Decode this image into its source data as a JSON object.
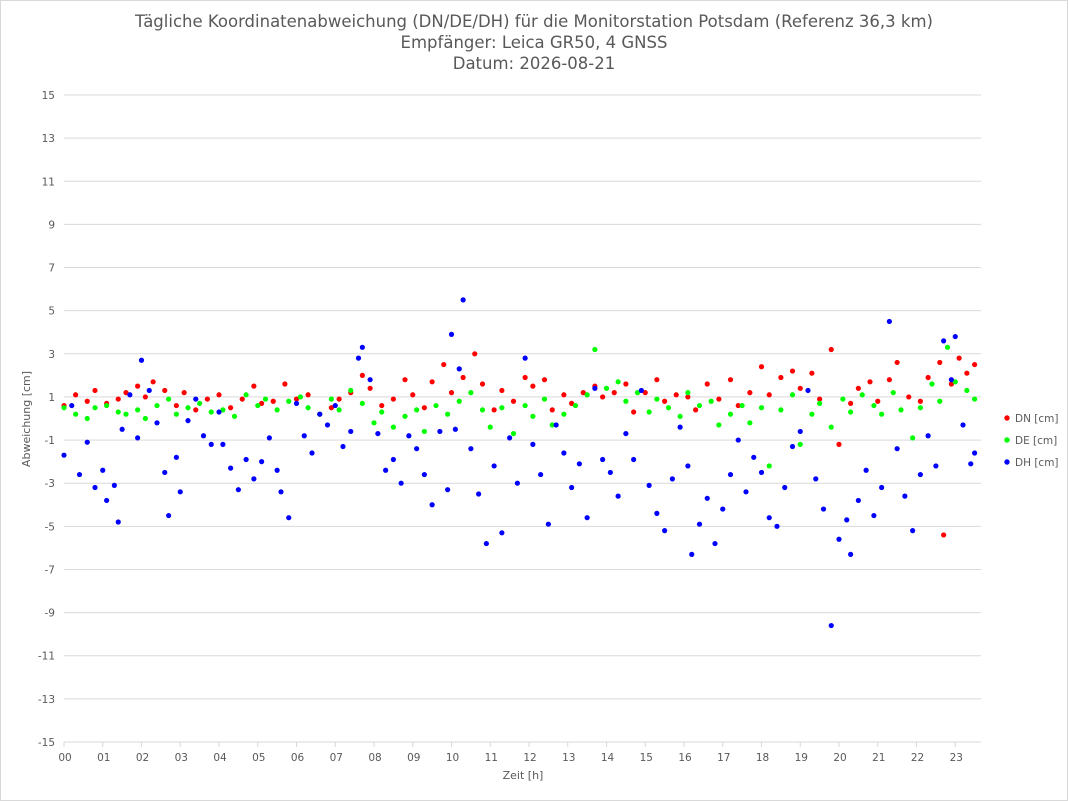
{
  "chart_data": {
    "type": "scatter",
    "title": "Tägliche Koordinatenabweichung (DN/DE/DH) für die Monitorstation Potsdam (Referenz 36,3 km)",
    "subtitle": "Empfänger: Leica GR50, 4 GNSS",
    "date_line": "Datum: 2026-08-21",
    "xlabel": "Zeit [h]",
    "ylabel": "Abweichung [cm]",
    "ylim": [
      -15,
      15
    ],
    "xlim": [
      0,
      24
    ],
    "grid": "horizontal",
    "legend_position": "right",
    "x_tick_labels": [
      "00",
      "01",
      "02",
      "03",
      "04",
      "05",
      "06",
      "07",
      "08",
      "09",
      "10",
      "11",
      "12",
      "13",
      "14",
      "15",
      "16",
      "17",
      "18",
      "19",
      "20",
      "21",
      "22",
      "23"
    ],
    "y_tick_labels": [
      "15",
      "13",
      "11",
      "9",
      "7",
      "5",
      "3",
      "1",
      "-1",
      "-3",
      "-5",
      "-7",
      "-9",
      "-11",
      "-13",
      "-15"
    ],
    "y_ticks": [
      15,
      13,
      11,
      9,
      7,
      5,
      3,
      1,
      -1,
      -3,
      -5,
      -7,
      -9,
      -11,
      -13,
      -15
    ],
    "series": [
      {
        "name": "DN [cm]",
        "color": "#ff0000",
        "values": [
          [
            0.0,
            0.6
          ],
          [
            0.3,
            1.1
          ],
          [
            0.6,
            0.8
          ],
          [
            0.8,
            1.3
          ],
          [
            1.1,
            0.7
          ],
          [
            1.4,
            0.9
          ],
          [
            1.6,
            1.2
          ],
          [
            1.9,
            1.5
          ],
          [
            2.1,
            1.0
          ],
          [
            2.3,
            1.7
          ],
          [
            2.6,
            1.3
          ],
          [
            2.9,
            0.6
          ],
          [
            3.1,
            1.2
          ],
          [
            3.4,
            0.4
          ],
          [
            3.7,
            0.9
          ],
          [
            4.0,
            1.1
          ],
          [
            4.3,
            0.5
          ],
          [
            4.6,
            0.9
          ],
          [
            4.9,
            1.5
          ],
          [
            5.1,
            0.7
          ],
          [
            5.4,
            0.8
          ],
          [
            5.7,
            1.6
          ],
          [
            6.0,
            0.9
          ],
          [
            6.3,
            1.1
          ],
          [
            6.6,
            0.2
          ],
          [
            6.9,
            0.5
          ],
          [
            7.1,
            0.9
          ],
          [
            7.4,
            1.2
          ],
          [
            7.7,
            2.0
          ],
          [
            7.9,
            1.4
          ],
          [
            8.2,
            0.6
          ],
          [
            8.5,
            0.9
          ],
          [
            8.8,
            1.8
          ],
          [
            9.0,
            1.1
          ],
          [
            9.3,
            0.5
          ],
          [
            9.5,
            1.7
          ],
          [
            9.8,
            2.5
          ],
          [
            10.0,
            1.2
          ],
          [
            10.3,
            1.9
          ],
          [
            10.6,
            3.0
          ],
          [
            10.8,
            1.6
          ],
          [
            11.1,
            0.4
          ],
          [
            11.3,
            1.3
          ],
          [
            11.6,
            0.8
          ],
          [
            11.9,
            1.9
          ],
          [
            12.1,
            1.5
          ],
          [
            12.4,
            1.8
          ],
          [
            12.6,
            0.4
          ],
          [
            12.9,
            1.1
          ],
          [
            13.1,
            0.7
          ],
          [
            13.4,
            1.2
          ],
          [
            13.7,
            1.5
          ],
          [
            13.9,
            1.0
          ],
          [
            14.2,
            1.2
          ],
          [
            14.5,
            1.6
          ],
          [
            14.7,
            0.3
          ],
          [
            15.0,
            1.2
          ],
          [
            15.3,
            1.8
          ],
          [
            15.5,
            0.8
          ],
          [
            15.8,
            1.1
          ],
          [
            16.1,
            1.0
          ],
          [
            16.3,
            0.4
          ],
          [
            16.6,
            1.6
          ],
          [
            16.9,
            0.9
          ],
          [
            17.2,
            1.8
          ],
          [
            17.4,
            0.6
          ],
          [
            17.7,
            1.2
          ],
          [
            18.0,
            2.4
          ],
          [
            18.2,
            1.1
          ],
          [
            18.5,
            1.9
          ],
          [
            18.8,
            2.2
          ],
          [
            19.0,
            1.4
          ],
          [
            19.3,
            2.1
          ],
          [
            19.5,
            0.9
          ],
          [
            19.8,
            3.2
          ],
          [
            20.0,
            -1.2
          ],
          [
            20.3,
            0.7
          ],
          [
            20.5,
            1.4
          ],
          [
            20.8,
            1.7
          ],
          [
            21.0,
            0.8
          ],
          [
            21.3,
            1.8
          ],
          [
            21.5,
            2.6
          ],
          [
            21.8,
            1.0
          ],
          [
            22.1,
            0.8
          ],
          [
            22.3,
            1.9
          ],
          [
            22.6,
            2.6
          ],
          [
            22.7,
            -5.4
          ],
          [
            22.9,
            1.6
          ],
          [
            23.1,
            2.8
          ],
          [
            23.3,
            2.1
          ],
          [
            23.5,
            2.5
          ]
        ]
      },
      {
        "name": "DE [cm]",
        "color": "#00ff00",
        "values": [
          [
            0.0,
            0.5
          ],
          [
            0.3,
            0.2
          ],
          [
            0.6,
            0.0
          ],
          [
            0.8,
            0.5
          ],
          [
            1.1,
            0.6
          ],
          [
            1.4,
            0.3
          ],
          [
            1.6,
            0.2
          ],
          [
            1.9,
            0.4
          ],
          [
            2.1,
            0.0
          ],
          [
            2.4,
            0.6
          ],
          [
            2.7,
            0.9
          ],
          [
            2.9,
            0.2
          ],
          [
            3.2,
            0.5
          ],
          [
            3.5,
            0.7
          ],
          [
            3.8,
            0.3
          ],
          [
            4.1,
            0.4
          ],
          [
            4.4,
            0.1
          ],
          [
            4.7,
            1.1
          ],
          [
            5.0,
            0.6
          ],
          [
            5.2,
            0.9
          ],
          [
            5.5,
            0.4
          ],
          [
            5.8,
            0.8
          ],
          [
            6.1,
            1.0
          ],
          [
            6.3,
            0.5
          ],
          [
            6.6,
            0.2
          ],
          [
            6.9,
            0.9
          ],
          [
            7.1,
            0.4
          ],
          [
            7.4,
            1.3
          ],
          [
            7.7,
            0.7
          ],
          [
            8.0,
            -0.2
          ],
          [
            8.2,
            0.3
          ],
          [
            8.5,
            -0.4
          ],
          [
            8.8,
            0.1
          ],
          [
            9.1,
            0.4
          ],
          [
            9.3,
            -0.6
          ],
          [
            9.6,
            0.6
          ],
          [
            9.9,
            0.2
          ],
          [
            10.2,
            0.8
          ],
          [
            10.5,
            1.2
          ],
          [
            10.8,
            0.4
          ],
          [
            11.0,
            -0.4
          ],
          [
            11.3,
            0.5
          ],
          [
            11.6,
            -0.7
          ],
          [
            11.9,
            0.6
          ],
          [
            12.1,
            0.1
          ],
          [
            12.4,
            0.9
          ],
          [
            12.6,
            -0.3
          ],
          [
            12.9,
            0.2
          ],
          [
            13.2,
            0.6
          ],
          [
            13.5,
            1.1
          ],
          [
            13.7,
            3.2
          ],
          [
            14.0,
            1.4
          ],
          [
            14.3,
            1.7
          ],
          [
            14.5,
            0.8
          ],
          [
            14.8,
            1.2
          ],
          [
            15.1,
            0.3
          ],
          [
            15.3,
            0.9
          ],
          [
            15.6,
            0.5
          ],
          [
            15.9,
            0.1
          ],
          [
            16.1,
            1.2
          ],
          [
            16.4,
            0.6
          ],
          [
            16.7,
            0.8
          ],
          [
            16.9,
            -0.3
          ],
          [
            17.2,
            0.2
          ],
          [
            17.5,
            0.6
          ],
          [
            17.7,
            -0.2
          ],
          [
            18.0,
            0.5
          ],
          [
            18.2,
            -2.2
          ],
          [
            18.5,
            0.4
          ],
          [
            18.8,
            1.1
          ],
          [
            19.0,
            -1.2
          ],
          [
            19.3,
            0.2
          ],
          [
            19.5,
            0.7
          ],
          [
            19.8,
            -0.4
          ],
          [
            20.1,
            0.9
          ],
          [
            20.3,
            0.3
          ],
          [
            20.6,
            1.1
          ],
          [
            20.9,
            0.6
          ],
          [
            21.1,
            0.2
          ],
          [
            21.4,
            1.2
          ],
          [
            21.6,
            0.4
          ],
          [
            21.9,
            -0.9
          ],
          [
            22.1,
            0.5
          ],
          [
            22.4,
            1.6
          ],
          [
            22.6,
            0.8
          ],
          [
            22.8,
            3.3
          ],
          [
            23.0,
            1.7
          ],
          [
            23.3,
            1.3
          ],
          [
            23.5,
            0.9
          ]
        ]
      },
      {
        "name": "DH [cm]",
        "color": "#0000ff",
        "values": [
          [
            0.0,
            -1.7
          ],
          [
            0.2,
            0.6
          ],
          [
            0.4,
            -2.6
          ],
          [
            0.6,
            -1.1
          ],
          [
            0.8,
            -3.2
          ],
          [
            1.0,
            -2.4
          ],
          [
            1.1,
            -3.8
          ],
          [
            1.3,
            -3.1
          ],
          [
            1.4,
            -4.8
          ],
          [
            1.5,
            -0.5
          ],
          [
            1.7,
            1.1
          ],
          [
            1.9,
            -0.9
          ],
          [
            2.0,
            2.7
          ],
          [
            2.2,
            1.3
          ],
          [
            2.4,
            -0.2
          ],
          [
            2.6,
            -2.5
          ],
          [
            2.7,
            -4.5
          ],
          [
            2.9,
            -1.8
          ],
          [
            3.0,
            -3.4
          ],
          [
            3.2,
            -0.1
          ],
          [
            3.4,
            0.9
          ],
          [
            3.6,
            -0.8
          ],
          [
            3.8,
            -1.2
          ],
          [
            4.0,
            0.3
          ],
          [
            4.1,
            -1.2
          ],
          [
            4.3,
            -2.3
          ],
          [
            4.5,
            -3.3
          ],
          [
            4.7,
            -1.9
          ],
          [
            4.9,
            -2.8
          ],
          [
            5.1,
            -2.0
          ],
          [
            5.3,
            -0.9
          ],
          [
            5.5,
            -2.4
          ],
          [
            5.6,
            -3.4
          ],
          [
            5.8,
            -4.6
          ],
          [
            6.0,
            0.7
          ],
          [
            6.2,
            -0.8
          ],
          [
            6.4,
            -1.6
          ],
          [
            6.6,
            0.2
          ],
          [
            6.8,
            -0.3
          ],
          [
            7.0,
            0.6
          ],
          [
            7.2,
            -1.3
          ],
          [
            7.4,
            -0.6
          ],
          [
            7.6,
            2.8
          ],
          [
            7.7,
            3.3
          ],
          [
            7.9,
            1.8
          ],
          [
            8.1,
            -0.7
          ],
          [
            8.3,
            -2.4
          ],
          [
            8.5,
            -1.9
          ],
          [
            8.7,
            -3.0
          ],
          [
            8.9,
            -0.8
          ],
          [
            9.1,
            -1.4
          ],
          [
            9.3,
            -2.6
          ],
          [
            9.5,
            -4.0
          ],
          [
            9.7,
            -0.6
          ],
          [
            9.9,
            -3.3
          ],
          [
            10.0,
            3.9
          ],
          [
            10.1,
            -0.5
          ],
          [
            10.2,
            2.3
          ],
          [
            10.3,
            5.5
          ],
          [
            10.5,
            -1.4
          ],
          [
            10.7,
            -3.5
          ],
          [
            10.9,
            -5.8
          ],
          [
            11.1,
            -2.2
          ],
          [
            11.3,
            -5.3
          ],
          [
            11.5,
            -0.9
          ],
          [
            11.7,
            -3.0
          ],
          [
            11.9,
            2.8
          ],
          [
            12.1,
            -1.2
          ],
          [
            12.3,
            -2.6
          ],
          [
            12.5,
            -4.9
          ],
          [
            12.7,
            -0.3
          ],
          [
            12.9,
            -1.6
          ],
          [
            13.1,
            -3.2
          ],
          [
            13.3,
            -2.1
          ],
          [
            13.5,
            -4.6
          ],
          [
            13.7,
            1.4
          ],
          [
            13.9,
            -1.9
          ],
          [
            14.1,
            -2.5
          ],
          [
            14.3,
            -3.6
          ],
          [
            14.5,
            -0.7
          ],
          [
            14.7,
            -1.9
          ],
          [
            14.9,
            1.3
          ],
          [
            15.1,
            -3.1
          ],
          [
            15.3,
            -4.4
          ],
          [
            15.5,
            -5.2
          ],
          [
            15.7,
            -2.8
          ],
          [
            15.9,
            -0.4
          ],
          [
            16.1,
            -2.2
          ],
          [
            16.2,
            -6.3
          ],
          [
            16.4,
            -4.9
          ],
          [
            16.6,
            -3.7
          ],
          [
            16.8,
            -5.8
          ],
          [
            17.0,
            -4.2
          ],
          [
            17.2,
            -2.6
          ],
          [
            17.4,
            -1.0
          ],
          [
            17.6,
            -3.4
          ],
          [
            17.8,
            -1.8
          ],
          [
            18.0,
            -2.5
          ],
          [
            18.2,
            -4.6
          ],
          [
            18.4,
            -5.0
          ],
          [
            18.6,
            -3.2
          ],
          [
            18.8,
            -1.3
          ],
          [
            19.0,
            -0.6
          ],
          [
            19.2,
            1.3
          ],
          [
            19.4,
            -2.8
          ],
          [
            19.6,
            -4.2
          ],
          [
            19.8,
            -9.6
          ],
          [
            20.0,
            -5.6
          ],
          [
            20.2,
            -4.7
          ],
          [
            20.3,
            -6.3
          ],
          [
            20.5,
            -3.8
          ],
          [
            20.7,
            -2.4
          ],
          [
            20.9,
            -4.5
          ],
          [
            21.1,
            -3.2
          ],
          [
            21.3,
            4.5
          ],
          [
            21.5,
            -1.4
          ],
          [
            21.7,
            -3.6
          ],
          [
            21.9,
            -5.2
          ],
          [
            22.1,
            -2.6
          ],
          [
            22.3,
            -0.8
          ],
          [
            22.5,
            -2.2
          ],
          [
            22.7,
            3.6
          ],
          [
            22.9,
            1.8
          ],
          [
            23.0,
            3.8
          ],
          [
            23.2,
            -0.3
          ],
          [
            23.4,
            -2.1
          ],
          [
            23.5,
            -1.6
          ]
        ]
      }
    ]
  }
}
